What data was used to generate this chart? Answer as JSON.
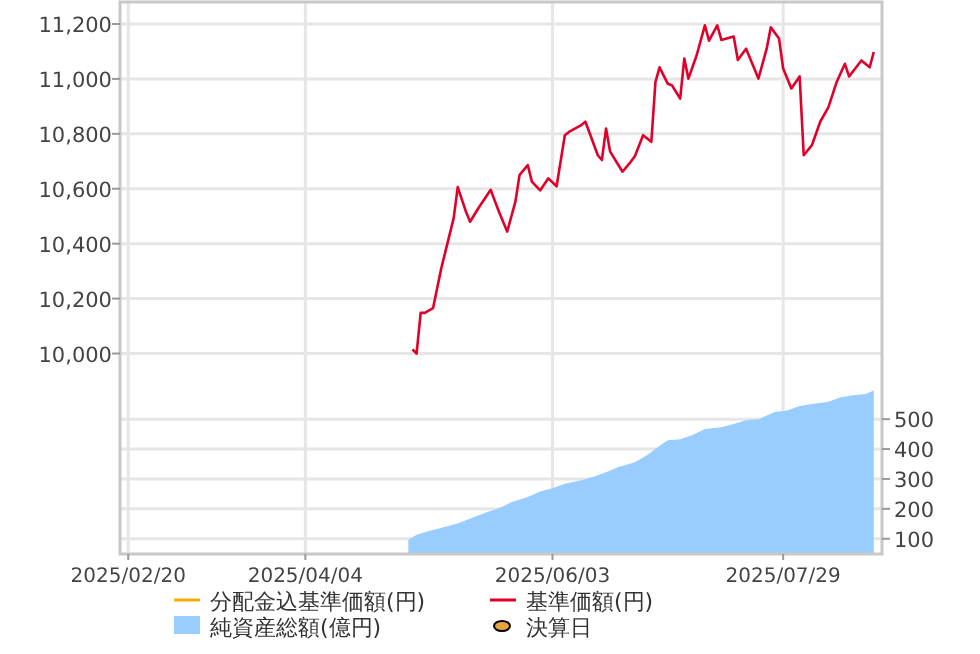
{
  "chart_data": {
    "type": "line",
    "xlim": [
      "2025-02-18",
      "2025-08-22"
    ],
    "xticks": [
      {
        "value": "2025-02-20",
        "label": "2025/02/20"
      },
      {
        "value": "2025-04-04",
        "label": "2025/04/04"
      },
      {
        "value": "2025-06-03",
        "label": "2025/06/03"
      },
      {
        "value": "2025-07-29",
        "label": "2025/07/29"
      }
    ],
    "ylim": [
      9270,
      11280
    ],
    "yticks": [
      {
        "value": 10000,
        "label": "10,000"
      },
      {
        "value": 10200,
        "label": "10,200"
      },
      {
        "value": 10400,
        "label": "10,400"
      },
      {
        "value": 10600,
        "label": "10,600"
      },
      {
        "value": 10800,
        "label": "10,800"
      },
      {
        "value": 11000,
        "label": "11,000"
      },
      {
        "value": 11200,
        "label": "11,200"
      }
    ],
    "y2lim": [
      49,
      1895
    ],
    "y2ticks": [
      100,
      200,
      300,
      400,
      500
    ],
    "grid": true,
    "legend": "bottom",
    "series": [
      {
        "name": "分配金込基準価額(円)",
        "type": "line",
        "color": "#ffaa00"
      },
      {
        "name": "基準価額(円)",
        "color": "#e0002a",
        "x": [
          "2025-04-30",
          "2025-05-01",
          "2025-05-02",
          "2025-05-03",
          "2025-05-05",
          "2025-05-07",
          "2025-05-08",
          "2025-05-10",
          "2025-05-11",
          "2025-05-13",
          "2025-05-14",
          "2025-05-16",
          "2025-05-19",
          "2025-05-21",
          "2025-05-23",
          "2025-05-25",
          "2025-05-26",
          "2025-05-28",
          "2025-05-29",
          "2025-05-31",
          "2025-06-02",
          "2025-06-04",
          "2025-06-06",
          "2025-06-07",
          "2025-06-10",
          "2025-06-11",
          "2025-06-14",
          "2025-06-15",
          "2025-06-16",
          "2025-06-17",
          "2025-06-20",
          "2025-06-22",
          "2025-06-23",
          "2025-06-25",
          "2025-06-27",
          "2025-06-28",
          "2025-06-29",
          "2025-07-01",
          "2025-07-02",
          "2025-07-04",
          "2025-07-05",
          "2025-07-06",
          "2025-07-08",
          "2025-07-10",
          "2025-07-11",
          "2025-07-13",
          "2025-07-14",
          "2025-07-17",
          "2025-07-18",
          "2025-07-20",
          "2025-07-23",
          "2025-07-25",
          "2025-07-26",
          "2025-07-28",
          "2025-07-29",
          "2025-07-31",
          "2025-08-02",
          "2025-08-03",
          "2025-08-05",
          "2025-08-07",
          "2025-08-09",
          "2025-08-11",
          "2025-08-13",
          "2025-08-14",
          "2025-08-17",
          "2025-08-19",
          "2025-08-20"
        ],
        "values": [
          10015,
          10000,
          10148,
          10148,
          10165,
          10310,
          10371,
          10492,
          10606,
          10516,
          10480,
          10529,
          10596,
          10516,
          10444,
          10553,
          10650,
          10686,
          10626,
          10594,
          10638,
          10609,
          10795,
          10807,
          10832,
          10844,
          10722,
          10705,
          10819,
          10735,
          10662,
          10698,
          10718,
          10795,
          10771,
          10989,
          11042,
          10982,
          10977,
          10928,
          11074,
          11001,
          11086,
          11195,
          11139,
          11195,
          11142,
          11154,
          11069,
          11110,
          11001,
          11110,
          11188,
          11147,
          11038,
          10965,
          11009,
          10722,
          10759,
          10844,
          10897,
          10989,
          11055,
          11009,
          11067,
          11042,
          11098
        ]
      },
      {
        "name": "純資産総額(億円)",
        "type": "area",
        "axis": "y2",
        "color": "#99ccff",
        "x": [
          "2025-04-29",
          "2025-05-01",
          "2025-05-03",
          "2025-05-05",
          "2025-05-08",
          "2025-05-11",
          "2025-05-15",
          "2025-05-18",
          "2025-05-21",
          "2025-05-24",
          "2025-05-28",
          "2025-05-31",
          "2025-06-03",
          "2025-06-06",
          "2025-06-10",
          "2025-06-13",
          "2025-06-16",
          "2025-06-19",
          "2025-06-23",
          "2025-06-26",
          "2025-06-29",
          "2025-07-01",
          "2025-07-04",
          "2025-07-07",
          "2025-07-10",
          "2025-07-14",
          "2025-07-17",
          "2025-07-20",
          "2025-07-23",
          "2025-07-27",
          "2025-07-30",
          "2025-08-02",
          "2025-08-05",
          "2025-08-09",
          "2025-08-12",
          "2025-08-15",
          "2025-08-18",
          "2025-08-20"
        ],
        "values": [
          96,
          113,
          122,
          129,
          140,
          151,
          173,
          189,
          202,
          222,
          240,
          258,
          269,
          284,
          296,
          307,
          322,
          340,
          356,
          380,
          411,
          429,
          433,
          447,
          467,
          473,
          484,
          496,
          500,
          524,
          529,
          544,
          551,
          558,
          573,
          580,
          584,
          596
        ]
      },
      {
        "name": "決算日",
        "type": "scatter",
        "color": "#e8a33c"
      }
    ]
  }
}
